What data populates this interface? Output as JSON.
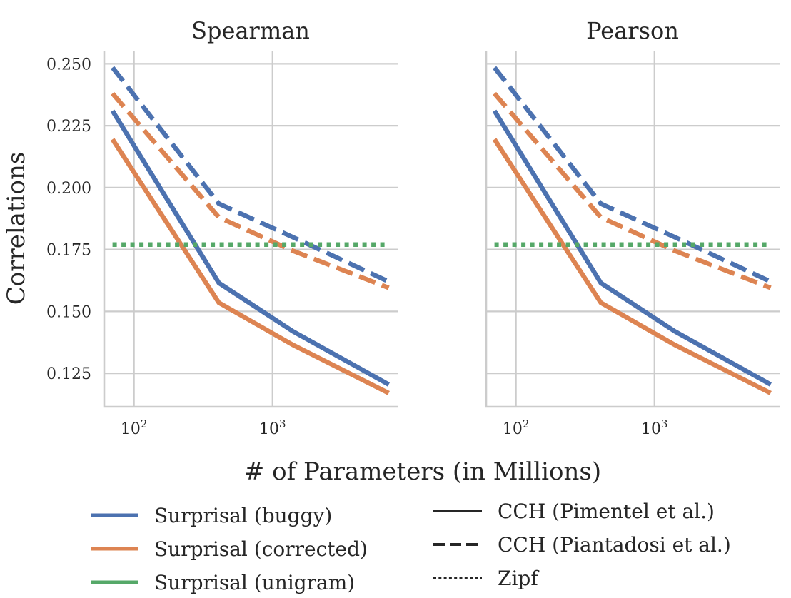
{
  "figure": {
    "ylabel": "Correlations",
    "xlabel": "# of Parameters (in Millions)"
  },
  "colors": {
    "buggy": "#4c72b0",
    "corrected": "#dd8452",
    "unigram": "#55a868",
    "style_key": "#262626"
  },
  "legend": {
    "colors": [
      {
        "label": "Surprisal (buggy)",
        "color": "#4c72b0"
      },
      {
        "label": "Surprisal (corrected)",
        "color": "#dd8452"
      },
      {
        "label": "Surprisal (unigram)",
        "color": "#55a868"
      }
    ],
    "styles": [
      {
        "label": "CCH (Pimentel et al.)",
        "dash": "solid"
      },
      {
        "label": "CCH (Piantadosi et al.)",
        "dash": "dashed"
      },
      {
        "label": "Zipf",
        "dash": "dotted"
      }
    ]
  },
  "chart_data": [
    {
      "type": "line",
      "title": "Spearman",
      "xscale": "log",
      "xlim": [
        61,
        8000
      ],
      "ylim": [
        0.1115,
        0.255
      ],
      "x_ticks": [
        100,
        1000
      ],
      "x_tick_labels": [
        [
          "10",
          "2"
        ],
        [
          "10",
          "3"
        ]
      ],
      "y_ticks": [
        0.125,
        0.15,
        0.175,
        0.2,
        0.225,
        0.25
      ],
      "y_tick_labels": [
        "0.125",
        "0.150",
        "0.175",
        "0.200",
        "0.225",
        "0.250"
      ],
      "grid": true,
      "x": [
        70,
        410,
        1400,
        6900
      ],
      "series": [
        {
          "color": "buggy",
          "dash": "solid",
          "values": [
            0.231,
            0.1615,
            0.142,
            0.1205
          ]
        },
        {
          "color": "corrected",
          "dash": "solid",
          "values": [
            0.2195,
            0.1535,
            0.1365,
            0.117
          ]
        },
        {
          "color": "buggy",
          "dash": "dashed",
          "values": [
            0.2485,
            0.1935,
            0.18,
            0.162
          ]
        },
        {
          "color": "corrected",
          "dash": "dashed",
          "values": [
            0.238,
            0.188,
            0.1745,
            0.1595
          ]
        },
        {
          "color": "unigram",
          "dash": "dotted",
          "values": [
            0.177,
            0.177,
            0.177,
            0.177
          ]
        }
      ]
    },
    {
      "type": "line",
      "title": "Pearson",
      "xscale": "log",
      "xlim": [
        61,
        8000
      ],
      "ylim": [
        0.1115,
        0.255
      ],
      "x_ticks": [
        100,
        1000
      ],
      "x_tick_labels": [
        [
          "10",
          "2"
        ],
        [
          "10",
          "3"
        ]
      ],
      "y_ticks": [
        0.125,
        0.15,
        0.175,
        0.2,
        0.225,
        0.25
      ],
      "y_tick_labels": [],
      "grid": true,
      "x": [
        70,
        410,
        1400,
        6900
      ],
      "series": [
        {
          "color": "buggy",
          "dash": "solid",
          "values": [
            0.231,
            0.1615,
            0.142,
            0.1205
          ]
        },
        {
          "color": "corrected",
          "dash": "solid",
          "values": [
            0.2195,
            0.1535,
            0.1365,
            0.117
          ]
        },
        {
          "color": "buggy",
          "dash": "dashed",
          "values": [
            0.2485,
            0.1935,
            0.18,
            0.162
          ]
        },
        {
          "color": "corrected",
          "dash": "dashed",
          "values": [
            0.238,
            0.188,
            0.1745,
            0.1595
          ]
        },
        {
          "color": "unigram",
          "dash": "dotted",
          "values": [
            0.177,
            0.177,
            0.177,
            0.177
          ]
        }
      ]
    }
  ]
}
